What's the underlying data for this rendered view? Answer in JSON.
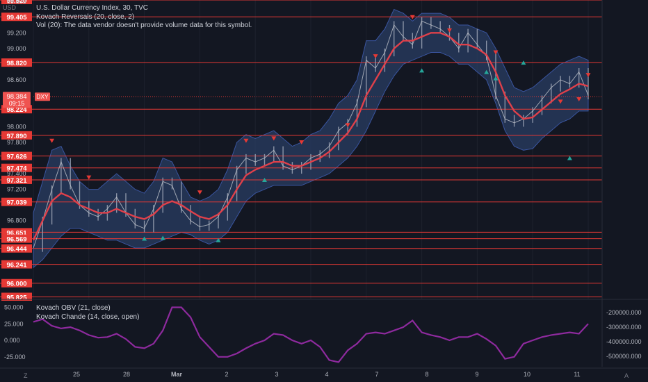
{
  "header": {
    "currency": "USD",
    "symbol_line": "U.S. Dollar Currency Index, 30, TVC",
    "indicator_1": "Kovach Reversals (20, close, 2)",
    "indicator_2": "Vol (20): The data vendor doesn't provide volume data for this symbol."
  },
  "lower_pane": {
    "indicator_1": "Kovach OBV (21, close)",
    "indicator_2": "Kovach Chande (14, close, open)"
  },
  "footer": {
    "left_corner": "Z",
    "right_corner": "A"
  },
  "chart_data": {
    "type": "line",
    "title": "U.S. Dollar Currency Index, 30, TVC",
    "price_axis": {
      "ylim": [
        95.82,
        99.62
      ],
      "ticks": [
        "99.600",
        "99.200",
        "99.000",
        "98.600",
        "98.000",
        "97.800",
        "97.400",
        "97.200",
        "96.800"
      ]
    },
    "current_price": {
      "label": "98.384",
      "countdown": "09:15",
      "symbol": "DXY",
      "value": 98.384
    },
    "levels": [
      {
        "value": 99.62,
        "label": "99.620"
      },
      {
        "value": 99.405,
        "label": "99.405"
      },
      {
        "value": 98.82,
        "label": "98.820"
      },
      {
        "value": 98.224,
        "label": "98.224"
      },
      {
        "value": 97.89,
        "label": "97.890"
      },
      {
        "value": 97.626,
        "label": "97.626"
      },
      {
        "value": 97.474,
        "label": "97.474"
      },
      {
        "value": 97.321,
        "label": "97.321"
      },
      {
        "value": 97.039,
        "label": "97.039"
      },
      {
        "value": 96.651,
        "label": "96.651"
      },
      {
        "value": 96.569,
        "label": "96.569"
      },
      {
        "value": 96.444,
        "label": "96.444"
      },
      {
        "value": 96.241,
        "label": "96.241"
      },
      {
        "value": 96.0,
        "label": "96.000"
      },
      {
        "value": 95.825,
        "label": "95.825"
      }
    ],
    "x_labels": [
      "25",
      "28",
      "Mar",
      "2",
      "3",
      "4",
      "7",
      "8",
      "9",
      "10",
      "11"
    ],
    "series": [
      {
        "role": "price",
        "values": [
          96.45,
          96.8,
          97.2,
          97.55,
          97.25,
          97.0,
          96.9,
          96.85,
          96.95,
          97.1,
          96.9,
          96.75,
          96.7,
          96.95,
          97.3,
          97.25,
          96.95,
          96.8,
          96.72,
          96.75,
          96.85,
          97.1,
          97.45,
          97.6,
          97.55,
          97.6,
          97.7,
          97.5,
          97.45,
          97.5,
          97.6,
          97.65,
          97.75,
          97.95,
          98.05,
          98.3,
          98.85,
          98.75,
          98.95,
          99.3,
          99.15,
          99.05,
          99.35,
          99.3,
          99.25,
          99.15,
          99.0,
          99.2,
          99.05,
          98.9,
          98.4,
          98.1,
          98.05,
          98.1,
          98.2,
          98.35,
          98.5,
          98.6,
          98.55,
          98.7,
          98.4
        ]
      },
      {
        "role": "moving-average",
        "values": [
          96.55,
          96.8,
          97.05,
          97.15,
          97.1,
          97.0,
          96.95,
          96.9,
          96.9,
          96.95,
          96.9,
          96.85,
          96.82,
          96.88,
          97.0,
          97.05,
          97.0,
          96.92,
          96.85,
          96.82,
          96.88,
          97.0,
          97.2,
          97.38,
          97.45,
          97.5,
          97.55,
          97.55,
          97.5,
          97.5,
          97.55,
          97.6,
          97.68,
          97.8,
          97.92,
          98.1,
          98.4,
          98.6,
          98.8,
          99.0,
          99.1,
          99.1,
          99.15,
          99.2,
          99.2,
          99.15,
          99.05,
          99.05,
          99.0,
          98.92,
          98.7,
          98.4,
          98.2,
          98.1,
          98.12,
          98.22,
          98.32,
          98.42,
          98.48,
          98.55,
          98.52
        ]
      },
      {
        "role": "band-upper",
        "values": [
          96.9,
          97.3,
          97.7,
          97.75,
          97.5,
          97.3,
          97.2,
          97.2,
          97.3,
          97.4,
          97.3,
          97.2,
          97.15,
          97.3,
          97.6,
          97.55,
          97.3,
          97.1,
          97.05,
          97.1,
          97.2,
          97.45,
          97.8,
          97.9,
          97.85,
          97.9,
          97.95,
          97.85,
          97.75,
          97.8,
          97.9,
          97.95,
          98.1,
          98.3,
          98.4,
          98.6,
          99.1,
          99.1,
          99.25,
          99.5,
          99.45,
          99.35,
          99.45,
          99.45,
          99.45,
          99.4,
          99.3,
          99.3,
          99.25,
          99.2,
          99.0,
          98.75,
          98.5,
          98.45,
          98.5,
          98.6,
          98.7,
          98.8,
          98.85,
          98.9,
          98.85
        ]
      },
      {
        "role": "band-lower",
        "values": [
          96.2,
          96.3,
          96.45,
          96.6,
          96.7,
          96.7,
          96.65,
          96.6,
          96.55,
          96.55,
          96.5,
          96.45,
          96.45,
          96.5,
          96.55,
          96.6,
          96.65,
          96.62,
          96.55,
          96.5,
          96.55,
          96.65,
          96.85,
          97.05,
          97.15,
          97.2,
          97.25,
          97.25,
          97.25,
          97.25,
          97.3,
          97.35,
          97.4,
          97.5,
          97.6,
          97.75,
          97.95,
          98.2,
          98.45,
          98.65,
          98.8,
          98.85,
          98.9,
          98.95,
          98.95,
          98.9,
          98.8,
          98.8,
          98.7,
          98.6,
          98.3,
          97.95,
          97.75,
          97.7,
          97.72,
          97.85,
          97.95,
          98.05,
          98.1,
          98.2,
          98.2
        ]
      }
    ],
    "reversal_markers": {
      "down": [
        [
          2,
          97.82
        ],
        [
          6,
          97.35
        ],
        [
          18,
          97.16
        ],
        [
          23,
          97.82
        ],
        [
          26,
          97.85
        ],
        [
          29,
          97.8
        ],
        [
          34,
          98.02
        ],
        [
          37,
          98.9
        ],
        [
          41,
          99.4
        ],
        [
          45,
          99.23
        ],
        [
          50,
          98.95
        ],
        [
          57,
          98.32
        ],
        [
          59,
          98.35
        ],
        [
          60,
          98.66
        ]
      ],
      "up": [
        [
          12,
          96.57
        ],
        [
          14,
          96.58
        ],
        [
          20,
          96.55
        ],
        [
          25,
          97.32
        ],
        [
          42,
          98.72
        ],
        [
          49,
          98.7
        ],
        [
          50,
          98.62
        ],
        [
          53,
          98.82
        ],
        [
          58,
          97.6
        ]
      ]
    },
    "oscillator": {
      "ylim": [
        -0.4,
        0.6
      ],
      "ticks_left": [
        "50.000",
        "25.000",
        "0.000",
        "-25.000"
      ],
      "ticks_right": [
        "-200000.000",
        "-300000.000",
        "-400000.000",
        "-500000.000"
      ],
      "values": [
        0.28,
        0.32,
        0.22,
        0.18,
        0.2,
        0.15,
        0.08,
        0.04,
        0.05,
        0.1,
        0.02,
        -0.1,
        -0.12,
        -0.05,
        0.15,
        0.5,
        0.5,
        0.35,
        0.05,
        -0.1,
        -0.25,
        -0.25,
        -0.2,
        -0.12,
        -0.05,
        0.0,
        0.1,
        0.08,
        0.0,
        -0.05,
        0.0,
        -0.1,
        -0.3,
        -0.33,
        -0.15,
        -0.05,
        0.1,
        0.12,
        0.1,
        0.15,
        0.2,
        0.3,
        0.12,
        0.08,
        0.05,
        0.0,
        0.05,
        0.05,
        0.1,
        0.02,
        -0.08,
        -0.28,
        -0.25,
        -0.05,
        0.0,
        0.05,
        0.08,
        0.1,
        0.12,
        0.1,
        0.25
      ]
    }
  }
}
